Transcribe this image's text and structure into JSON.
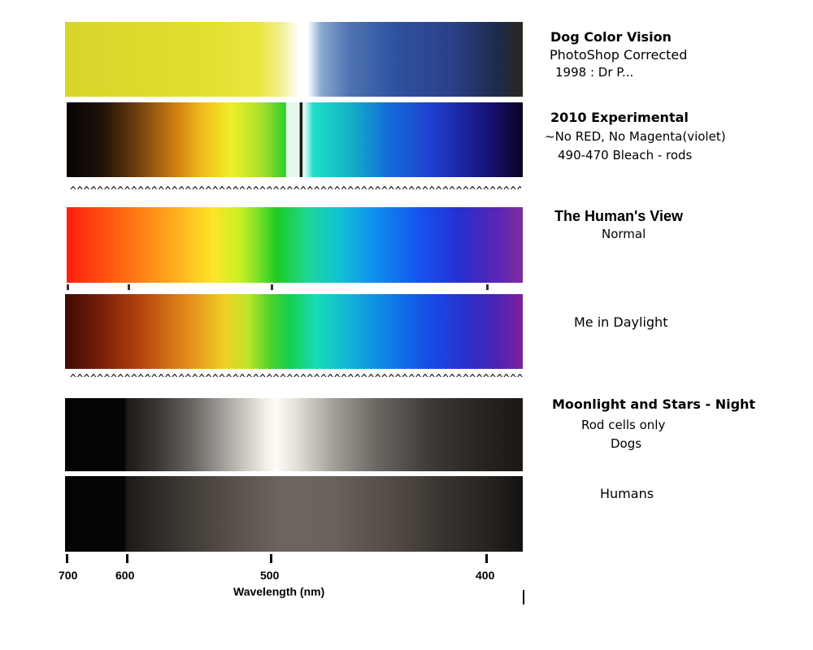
{
  "labels": {
    "dog_title": "Dog Color Vision",
    "dog_sub1": "PhotoShop  Corrected",
    "dog_sub2": "1998 : Dr P...",
    "exp_title": "2010 Experimental",
    "exp_sub1": "~No RED, No Magenta(violet)",
    "exp_sub2": "490-470 Bleach - rods",
    "human_title": "The Human's View",
    "human_sub": "Normal",
    "me_daylight": "Me in Daylight",
    "night_title": "Moonlight and Stars - Night",
    "rods_only": "Rod cells only",
    "dogs": "Dogs",
    "humans": "Humans"
  },
  "separator_text": "^^^^^^^^^^^^^^^^^^^^^^^^^^^^^^^^^^^^^^^^^^^^^^^^^^^^^^^^^^^^^^^^^^^^^^^^^^^^^^^^",
  "axis": {
    "title": "Wavelength (nm)",
    "ticks": [
      "700",
      "600",
      "500",
      "400"
    ]
  },
  "colors": {
    "dog_yellow": "#e8e62e",
    "dog_blue": "#1f3a8a",
    "human_red": "#ff1a10",
    "human_violet": "#7a1f9a",
    "night_peak": "#fdfcf6"
  }
}
